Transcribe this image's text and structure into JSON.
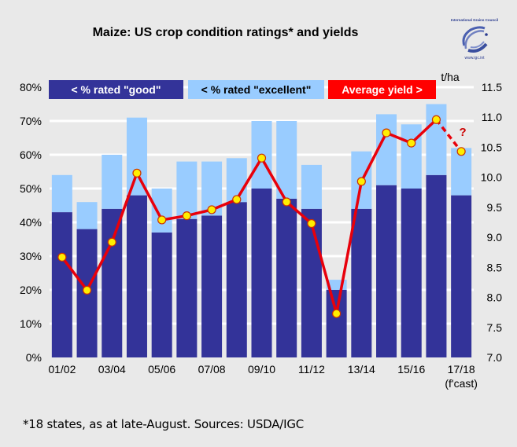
{
  "title": "Maize: US crop condition ratings* and yields",
  "logo": {
    "org": "International Grains Council",
    "url_text": "www.igc.int"
  },
  "footnote": "*18 states, as at late-August. Sources: USDA/IGC",
  "colors": {
    "good": "#333399",
    "excellent": "#99ccff",
    "yield": "#e8000b",
    "marker": "#ffee00",
    "marker_edge": "#cc3300",
    "grid": "#ffffff",
    "background": "#e9e9e9"
  },
  "chart_data": {
    "type": "bar",
    "title": "Maize: US crop condition ratings* and yields",
    "categories": [
      "01/02",
      "02/03",
      "03/04",
      "04/05",
      "05/06",
      "06/07",
      "07/08",
      "08/09",
      "09/10",
      "10/11",
      "11/12",
      "12/13",
      "13/14",
      "14/15",
      "15/16",
      "16/17",
      "17/18"
    ],
    "x_tick_labels": [
      "01/02",
      "",
      "03/04",
      "",
      "05/06",
      "",
      "07/08",
      "",
      "09/10",
      "",
      "11/12",
      "",
      "13/14",
      "",
      "15/16",
      "",
      "17/18"
    ],
    "x_tick_sublabel": "(f'cast)",
    "series": [
      {
        "name": "< % rated \"good\"",
        "type": "stacked-bar",
        "axis": "left",
        "values": [
          43,
          38,
          44,
          48,
          37,
          41,
          42,
          46,
          50,
          47,
          44,
          20,
          44,
          51,
          50,
          54,
          48
        ]
      },
      {
        "name": "< % rated \"excellent\"",
        "type": "stacked-bar",
        "axis": "left",
        "values": [
          11,
          8,
          16,
          23,
          13,
          17,
          16,
          13,
          20,
          23,
          13,
          3,
          17,
          21,
          19,
          21,
          14
        ]
      },
      {
        "name": "Average yield >",
        "type": "line",
        "axis": "right",
        "values": [
          8.67,
          8.12,
          8.92,
          10.07,
          9.29,
          9.36,
          9.46,
          9.63,
          10.32,
          9.59,
          9.23,
          7.73,
          9.93,
          10.74,
          10.57,
          10.96,
          10.43
        ],
        "forecast_last_point": true,
        "forecast_annotation": "?"
      }
    ],
    "y_left": {
      "label": "",
      "ylim": [
        0,
        80
      ],
      "ticks": [
        "0%",
        "10%",
        "20%",
        "30%",
        "40%",
        "50%",
        "60%",
        "70%",
        "80%"
      ]
    },
    "y_right": {
      "label": "t/ha",
      "ylim": [
        7.0,
        11.5
      ],
      "ticks": [
        "7.0",
        "7.5",
        "8.0",
        "8.5",
        "9.0",
        "9.5",
        "10.0",
        "10.5",
        "11.0",
        "11.5"
      ]
    },
    "grid": true,
    "legend": {
      "placement": "top",
      "entries": [
        "< % rated \"good\"",
        "< % rated \"excellent\"",
        "Average yield >"
      ]
    }
  }
}
